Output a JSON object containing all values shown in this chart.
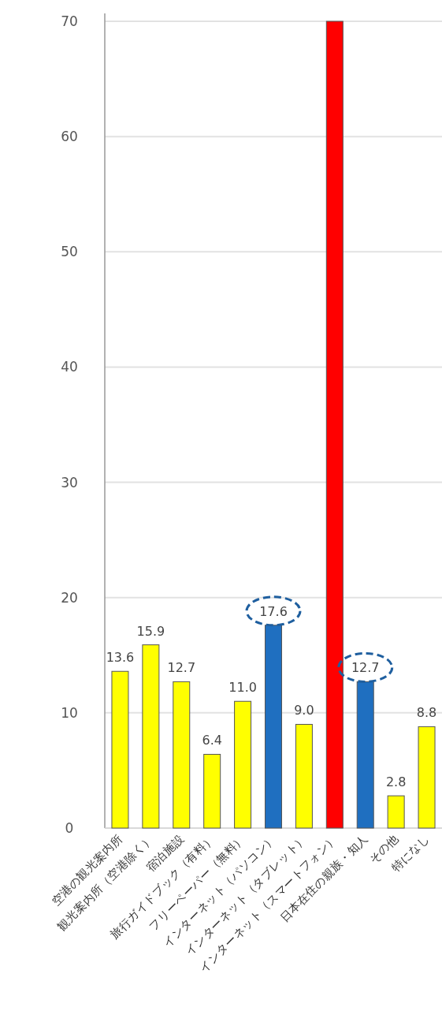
{
  "chart_data": {
    "type": "bar",
    "categories": [
      "空港の観光案内所",
      "観光案内所（空港除く）",
      "宿泊施設",
      "旅行ガイドブック（有料）",
      "フリーペーパー（無料）",
      "インターネット（パソコン）",
      "インターネット（タブレット）",
      "インターネット（スマートフォン）",
      "日本在住の親族・知人",
      "その他",
      "特になし"
    ],
    "values": [
      13.6,
      15.9,
      12.7,
      6.4,
      11.0,
      17.6,
      9.0,
      70,
      12.7,
      2.8,
      8.8
    ],
    "value_labels": [
      "13.6",
      "15.9",
      "12.7",
      "6.4",
      "11.0",
      "17.6",
      "9.0",
      null,
      "12.7",
      "2.8",
      "8.8"
    ],
    "colors": [
      "#ffff00",
      "#ffff00",
      "#ffff00",
      "#ffff00",
      "#ffff00",
      "#1f6fc0",
      "#ffff00",
      "#ff0000",
      "#1f6fc0",
      "#ffff00",
      "#ffff00"
    ],
    "ylim": [
      0,
      70
    ],
    "yticks": [
      0,
      10,
      20,
      30,
      40,
      50,
      60,
      70
    ],
    "grid": "y"
  }
}
